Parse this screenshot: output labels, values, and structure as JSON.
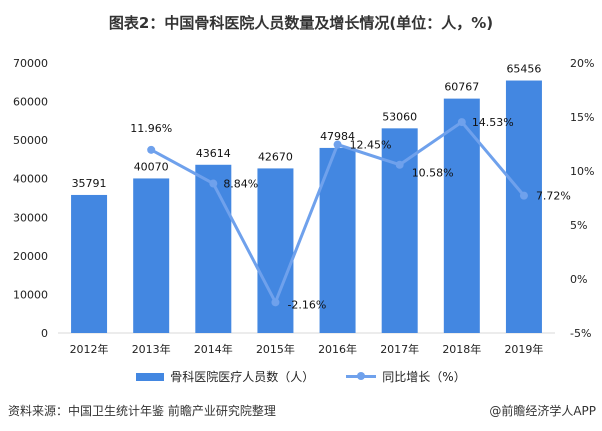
{
  "title": "图表2：中国骨科医院人员数量及增长情况(单位：人，%)",
  "chart_data": {
    "type": "bar+line",
    "title": "图表2：中国骨科医院人员数量及增长情况(单位：人，%)",
    "categories": [
      "2012年",
      "2013年",
      "2014年",
      "2015年",
      "2016年",
      "2017年",
      "2018年",
      "2019年"
    ],
    "series": [
      {
        "name": "骨科医院医疗人员数（人）",
        "type": "bar",
        "axis": "left",
        "color": "#4387e1",
        "values": [
          35791,
          40070,
          43614,
          42670,
          47984,
          53060,
          60767,
          65456
        ]
      },
      {
        "name": "同比增长（%）",
        "type": "line",
        "axis": "right",
        "color": "#6fa1ec",
        "values": [
          null,
          11.96,
          8.84,
          -2.16,
          12.45,
          10.58,
          14.53,
          7.72
        ]
      }
    ],
    "left_axis": {
      "min": 0,
      "max": 70000,
      "step": 10000,
      "ticks": [
        "0",
        "10000",
        "20000",
        "30000",
        "40000",
        "50000",
        "60000",
        "70000"
      ]
    },
    "right_axis": {
      "min": -5,
      "max": 20,
      "step": 5,
      "ticks": [
        "-5%",
        "0%",
        "5%",
        "10%",
        "15%",
        "20%"
      ]
    },
    "bar_labels": [
      "35791",
      "40070",
      "43614",
      "42670",
      "47984",
      "53060",
      "60767",
      "65456"
    ],
    "line_labels": [
      "",
      "11.96%",
      "8.84%",
      "-2.16%",
      "12.45%",
      "10.58%",
      "14.53%",
      "7.72%"
    ],
    "legend_position": "bottom",
    "grid": false
  },
  "legend": {
    "bar": "骨科医院医疗人员数（人）",
    "line": "同比增长（%）"
  },
  "footer": {
    "source": "资料来源：中国卫生统计年鉴 前瞻产业研究院整理",
    "credit": "@前瞻经济学人APP"
  }
}
